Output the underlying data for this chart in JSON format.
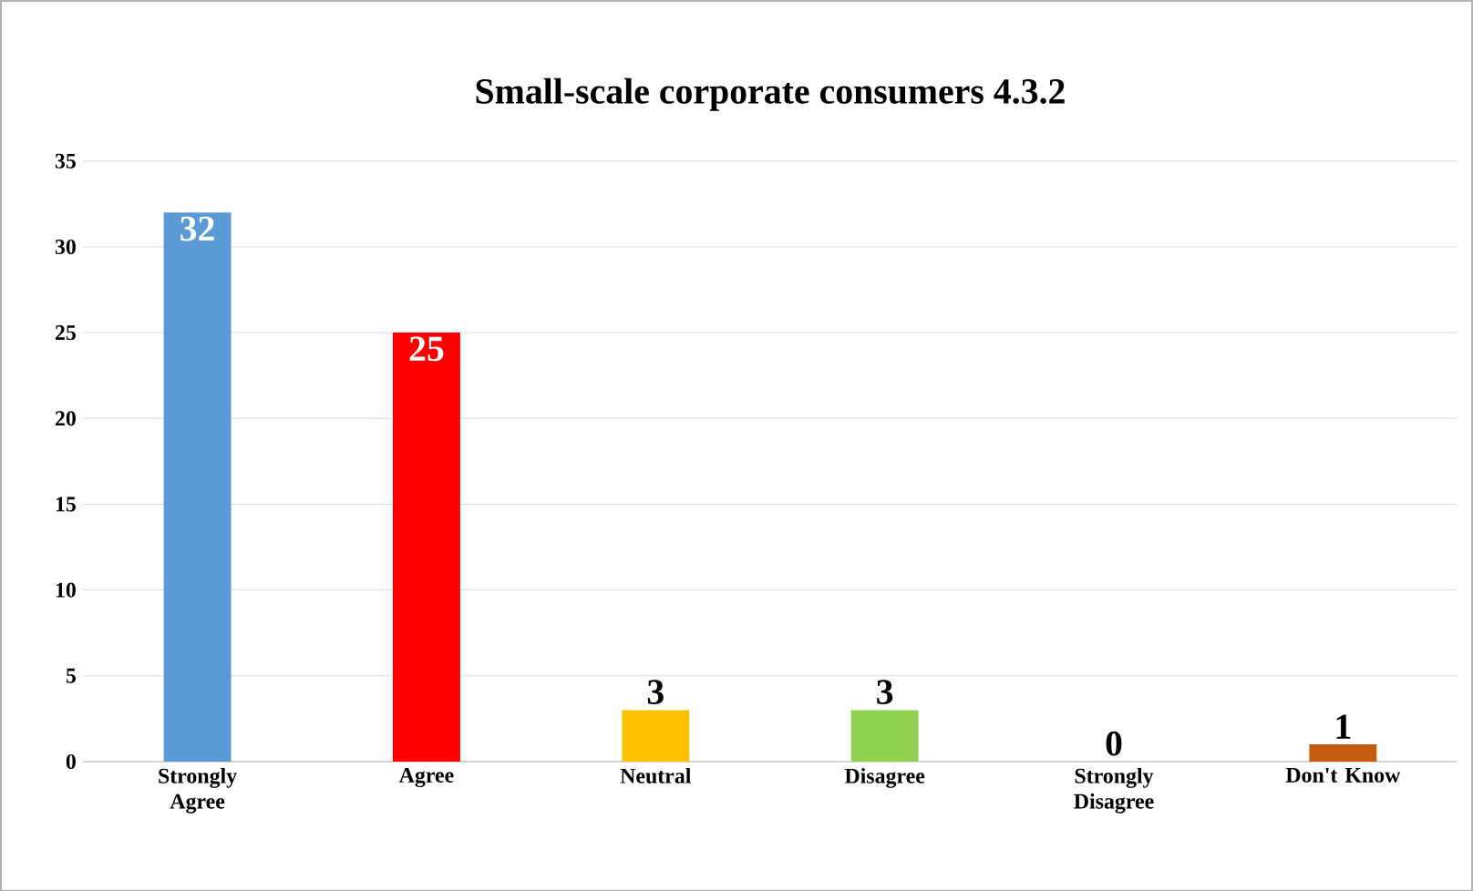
{
  "chart_data": {
    "type": "bar",
    "title": "Small-scale corporate consumers 4.3.2",
    "categories": [
      "Strongly Agree",
      "Agree",
      "Neutral",
      "Disagree",
      "Strongly Disagree",
      "Don't Know"
    ],
    "values": [
      32,
      25,
      3,
      3,
      0,
      1
    ],
    "colors": [
      "#5b9bd5",
      "#ff0000",
      "#ffc000",
      "#92d050",
      "#4472c4",
      "#c55a11"
    ],
    "ylim": [
      0,
      35
    ],
    "yticks": [
      0,
      5,
      10,
      15,
      20,
      25,
      30,
      35
    ],
    "grid": "y",
    "data_labels": true
  }
}
